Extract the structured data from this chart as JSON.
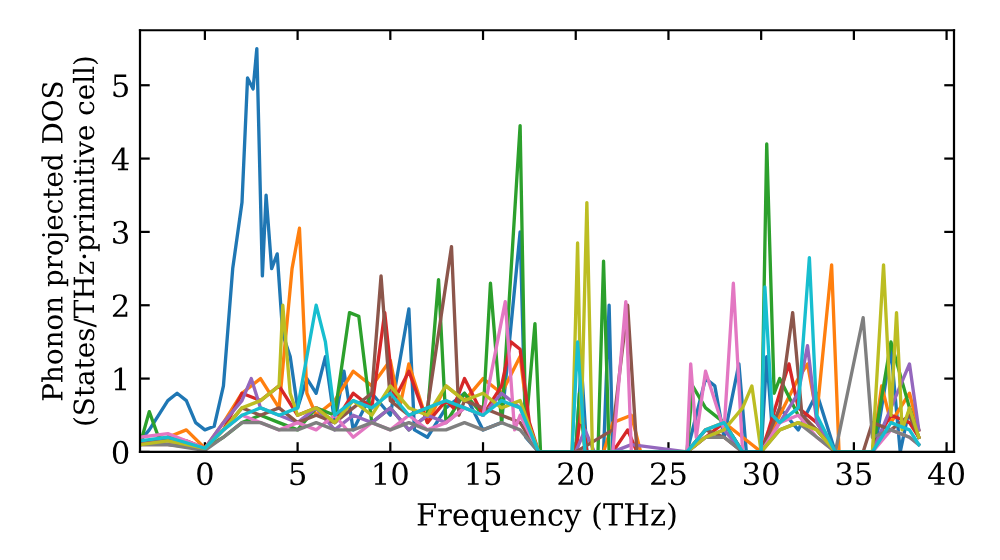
{
  "chart_data": {
    "type": "line",
    "xlabel": "Frequency (THz)",
    "ylabel": "Phonon projected DOS\n(States/THz·primitive cell)",
    "xlim": [
      -3.5,
      40.4
    ],
    "ylim": [
      0,
      5.75
    ],
    "xticks": [
      0,
      5,
      10,
      15,
      20,
      25,
      30,
      35,
      40
    ],
    "yticks": [
      0,
      1,
      2,
      3,
      4,
      5
    ],
    "series": [
      {
        "color": "#1f77b4",
        "x": [
          -3.5,
          -3,
          -2,
          -1.5,
          -1,
          -0.5,
          0,
          0.5,
          1,
          1.5,
          2,
          2.3,
          2.6,
          2.8,
          3.1,
          3.3,
          3.6,
          3.9,
          4.2,
          4.6,
          5,
          5.5,
          6,
          6.5,
          7,
          7.5,
          8,
          9,
          10,
          11,
          11.3,
          12,
          13,
          14,
          15,
          16,
          17,
          17.3,
          18,
          20,
          20.3,
          20.6,
          21.5,
          21.8,
          22,
          26,
          26.5,
          27,
          27.5,
          28,
          28.8,
          29.2,
          30,
          30.3,
          30.6,
          31,
          32,
          33,
          34,
          36,
          36.3,
          37,
          37.5,
          38,
          38.5
        ],
        "values": [
          0.15,
          0.3,
          0.7,
          0.8,
          0.7,
          0.4,
          0.3,
          0.35,
          0.9,
          2.5,
          3.4,
          5.1,
          4.95,
          5.5,
          2.4,
          3.5,
          2.5,
          2.7,
          1.6,
          1.3,
          0.6,
          1.0,
          0.8,
          1.3,
          0.4,
          1.1,
          0.3,
          0.8,
          0.5,
          1.95,
          0.3,
          0.2,
          0.6,
          0.8,
          0.3,
          0.4,
          3.0,
          0.2,
          0,
          0,
          1.2,
          0,
          0,
          2.0,
          0,
          0,
          0.5,
          1.0,
          0.9,
          0.2,
          1.2,
          0,
          0,
          1.3,
          0.3,
          0.6,
          0.3,
          0.8,
          0,
          0,
          0.3,
          1.4,
          0,
          0.6,
          0.3
        ]
      },
      {
        "color": "#ff7f0e",
        "x": [
          -3.5,
          -2,
          -1,
          0,
          1,
          2,
          3,
          4,
          4.7,
          5.1,
          5.5,
          6,
          7,
          8,
          9,
          10,
          10.5,
          11,
          12,
          13,
          14,
          15,
          16,
          17,
          17.5,
          18,
          20,
          20.3,
          20.6,
          21.5,
          22,
          23,
          23.5,
          26,
          27,
          28,
          29,
          30,
          31,
          32,
          32.5,
          33,
          33.8,
          34.2,
          36,
          36.5,
          37,
          38,
          38.5
        ],
        "values": [
          0.1,
          0.2,
          0.3,
          0.05,
          0.4,
          0.8,
          1.0,
          0.6,
          2.5,
          3.05,
          0.8,
          0.5,
          0.7,
          1.1,
          0.9,
          1.25,
          0.6,
          1.2,
          0.4,
          0.9,
          0.7,
          1.0,
          0.8,
          1.3,
          0.3,
          0,
          0,
          0.6,
          0,
          0,
          0.4,
          0.5,
          0,
          0,
          0.3,
          0.4,
          0.2,
          0,
          0.5,
          1.0,
          1.2,
          0.5,
          2.55,
          0,
          0,
          0.9,
          0.4,
          0.8,
          0.3
        ]
      },
      {
        "color": "#2ca02c",
        "x": [
          -3.5,
          -3,
          -2.5,
          -1,
          0,
          1,
          2,
          3,
          4,
          5,
          6,
          7,
          7.8,
          8.3,
          9,
          10,
          11,
          12,
          12.6,
          13,
          14,
          15,
          15.4,
          16,
          17,
          17.3,
          17.8,
          18.1,
          20,
          20.2,
          20.5,
          21.2,
          21.5,
          21.8,
          23,
          26,
          26.3,
          27,
          28,
          29,
          30,
          30.3,
          30.7,
          31,
          32,
          33,
          34,
          36,
          37,
          38,
          38.5
        ],
        "values": [
          0.1,
          0.55,
          0.2,
          0.1,
          0.05,
          0.2,
          0.4,
          0.5,
          0.4,
          0.3,
          0.6,
          0.5,
          1.9,
          1.85,
          0.4,
          0.6,
          0.3,
          0.5,
          2.35,
          0.4,
          0.8,
          0.5,
          2.3,
          0.4,
          4.45,
          0.3,
          1.75,
          0,
          0,
          0.8,
          0,
          0,
          2.6,
          0,
          0,
          0,
          0.9,
          0.6,
          0.4,
          0,
          0,
          4.2,
          0.8,
          1.0,
          0.5,
          0.3,
          0,
          0,
          1.5,
          0.6,
          0.2
        ]
      },
      {
        "color": "#d62728",
        "x": [
          -3.5,
          -2,
          -1,
          0,
          1,
          2,
          3,
          4,
          5,
          6,
          7,
          8,
          9,
          9.7,
          10.2,
          11,
          12,
          13,
          13.4,
          14,
          15,
          16,
          16.5,
          17,
          17.5,
          18,
          20,
          20.3,
          20.6,
          21.5,
          22,
          22.8,
          23.3,
          26,
          26.5,
          27,
          28,
          29,
          30,
          30.4,
          31,
          31.5,
          32,
          33,
          34,
          36,
          36.3,
          37,
          38,
          38.5
        ],
        "values": [
          0.1,
          0.2,
          0.15,
          0.05,
          0.3,
          0.8,
          0.7,
          0.9,
          0.5,
          0.6,
          0.4,
          0.8,
          0.6,
          1.9,
          0.7,
          1.1,
          0.4,
          0.7,
          0.6,
          1.0,
          0.5,
          0.9,
          1.5,
          1.4,
          0.4,
          0,
          0,
          0.6,
          0,
          0,
          0,
          0.3,
          0,
          0,
          0.1,
          0.2,
          0.4,
          0,
          0,
          0.3,
          0.8,
          1.2,
          0.6,
          0.4,
          0,
          0,
          0.2,
          0.5,
          0.4,
          0.2
        ]
      },
      {
        "color": "#9467bd",
        "x": [
          -3.5,
          -2,
          0,
          1,
          2,
          2.5,
          3,
          4,
          5,
          6,
          7,
          8,
          9,
          10,
          11,
          12,
          13,
          14,
          15,
          16,
          17,
          18,
          20,
          20.5,
          21,
          22,
          23,
          26,
          27,
          28,
          29,
          30,
          31,
          32,
          32.5,
          33,
          34,
          36,
          37,
          38,
          38.5
        ],
        "values": [
          0.1,
          0.15,
          0.05,
          0.4,
          0.7,
          1.0,
          0.6,
          0.5,
          0.4,
          0.6,
          0.3,
          0.5,
          0.4,
          0.6,
          0.3,
          0.5,
          0.4,
          0.6,
          0.5,
          0.8,
          0.6,
          0,
          0,
          0.3,
          0,
          0,
          0.1,
          0,
          0.2,
          0.3,
          0,
          0,
          0.4,
          0.8,
          1.45,
          0.4,
          0,
          0,
          0.6,
          1.2,
          0.3
        ]
      },
      {
        "color": "#8c564b",
        "x": [
          -3.5,
          -2,
          0,
          1,
          2,
          3,
          4,
          5,
          6,
          7,
          8,
          9,
          9.5,
          10,
          11,
          12,
          13.3,
          13.7,
          14,
          15,
          16,
          17,
          18,
          20,
          22,
          22.8,
          23.3,
          26,
          27,
          28,
          29,
          30,
          31,
          31.7,
          32.2,
          33,
          34,
          35.5,
          36,
          37,
          38,
          38.5
        ],
        "values": [
          0.1,
          0.1,
          0.05,
          0.3,
          0.6,
          0.5,
          0.6,
          0.4,
          0.5,
          0.4,
          0.6,
          0.8,
          2.4,
          0.7,
          0.5,
          0.6,
          2.8,
          0.5,
          0.7,
          0.6,
          0.5,
          0.4,
          0,
          0,
          0.3,
          2.0,
          0,
          0,
          0.3,
          0.2,
          0,
          0,
          0.6,
          1.9,
          0.5,
          0.3,
          0,
          0,
          0.4,
          0.3,
          0.5,
          0.2
        ]
      },
      {
        "color": "#e377c2",
        "x": [
          -3.5,
          -2,
          0,
          1,
          2,
          3,
          4,
          5,
          6,
          7,
          8,
          9,
          10,
          11,
          12,
          13,
          14,
          15,
          16.2,
          16.7,
          17,
          18,
          20,
          22,
          22.7,
          23,
          26,
          26.2,
          26.5,
          27,
          28,
          28.5,
          29,
          30,
          31,
          32,
          33,
          34,
          36,
          37,
          38,
          38.5
        ],
        "values": [
          0.2,
          0.25,
          0.05,
          0.3,
          0.5,
          0.4,
          0.3,
          0.4,
          0.3,
          0.5,
          0.2,
          0.4,
          0.3,
          0.5,
          0.3,
          0.4,
          0.6,
          0.5,
          2.05,
          0.3,
          0.5,
          0,
          0,
          0,
          2.05,
          0,
          0,
          1.2,
          0.2,
          1.1,
          0.3,
          2.3,
          0,
          0,
          0.4,
          0.5,
          0.2,
          0,
          0,
          0.3,
          0.2,
          0.1
        ]
      },
      {
        "color": "#7f7f7f",
        "x": [
          -3.5,
          -2,
          0,
          1,
          2,
          3,
          4,
          5,
          6,
          7,
          8,
          9,
          10,
          11,
          12,
          13,
          14,
          15,
          16,
          17,
          18,
          20,
          22,
          26,
          27,
          28,
          29,
          30,
          31,
          32,
          33,
          34,
          35.5,
          36,
          37,
          38,
          38.5
        ],
        "values": [
          0.1,
          0.1,
          0.02,
          0.2,
          0.4,
          0.4,
          0.3,
          0.3,
          0.4,
          0.3,
          0.3,
          0.4,
          0.3,
          0.4,
          0.3,
          0.3,
          0.4,
          0.3,
          0.4,
          0.3,
          0,
          0,
          0,
          0,
          0.2,
          0.2,
          0,
          0,
          0.3,
          0.4,
          0.2,
          0,
          1.83,
          0.2,
          0.3,
          0.2,
          0.1
        ]
      },
      {
        "color": "#bcbd22",
        "x": [
          -3.5,
          -2,
          0,
          1,
          2,
          3,
          4,
          4.2,
          4.6,
          5,
          6,
          7,
          8,
          9,
          10,
          11,
          12,
          13,
          14,
          15,
          16,
          17,
          18,
          19.8,
          20.1,
          20.3,
          20.6,
          20.9,
          22,
          26,
          27,
          28,
          29,
          29.5,
          30,
          31,
          32,
          33,
          34,
          36,
          36.6,
          37,
          37.3,
          37.6,
          38,
          38.5
        ],
        "values": [
          0.1,
          0.15,
          0.05,
          0.3,
          0.6,
          0.7,
          0.9,
          2.0,
          0.8,
          0.5,
          0.6,
          0.4,
          0.7,
          0.5,
          0.9,
          0.6,
          0.5,
          0.9,
          0.7,
          0.8,
          0.6,
          0.7,
          0,
          0,
          2.85,
          0.4,
          3.4,
          0,
          0,
          0,
          0.2,
          0.3,
          0.6,
          0.9,
          0,
          0.3,
          0.4,
          0.3,
          0,
          0,
          2.55,
          0.5,
          1.9,
          0.3,
          0.6,
          0.2
        ]
      },
      {
        "color": "#17becf",
        "x": [
          -3.5,
          -2,
          0,
          1,
          2,
          3,
          4,
          5,
          6,
          6.5,
          7,
          8,
          9,
          10,
          11,
          12,
          13,
          14,
          15,
          16,
          17,
          18,
          19.8,
          20.1,
          20.5,
          26,
          27,
          28,
          29,
          30,
          30.2,
          30.6,
          31,
          32,
          32.6,
          33,
          34,
          36,
          37,
          38,
          38.5
        ],
        "values": [
          0.15,
          0.2,
          0.05,
          0.3,
          0.5,
          0.6,
          0.5,
          0.6,
          2.0,
          1.5,
          0.5,
          0.7,
          0.6,
          0.8,
          0.5,
          0.6,
          0.7,
          0.6,
          0.5,
          0.7,
          0.6,
          0,
          0,
          1.5,
          0,
          0,
          0.3,
          0.4,
          0,
          0,
          2.25,
          0.5,
          0.4,
          0.6,
          2.65,
          0.5,
          0,
          0,
          0.4,
          0.3,
          0.1
        ]
      }
    ]
  }
}
